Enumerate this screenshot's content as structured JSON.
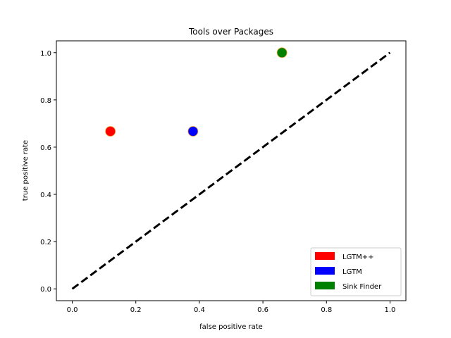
{
  "chart_data": {
    "type": "scatter",
    "title": "Tools over Packages",
    "xlabel": "false positive rate",
    "ylabel": "true positive rate",
    "xlim": [
      -0.05,
      1.05
    ],
    "ylim": [
      -0.05,
      1.05
    ],
    "xticks": [
      "0.0",
      "0.2",
      "0.4",
      "0.6",
      "0.8",
      "1.0"
    ],
    "yticks": [
      "0.0",
      "0.2",
      "0.4",
      "0.6",
      "0.8",
      "1.0"
    ],
    "grid": false,
    "legend_position": "lower-right",
    "series": [
      {
        "name": "LGTM++",
        "color": "#ff0000",
        "points": [
          {
            "x": 0.12,
            "y": 0.667
          }
        ]
      },
      {
        "name": "LGTM",
        "color": "#0000ff",
        "points": [
          {
            "x": 0.38,
            "y": 0.667
          }
        ]
      },
      {
        "name": "Sink Finder",
        "color": "#008000",
        "points": [
          {
            "x": 0.66,
            "y": 1.0
          }
        ]
      }
    ],
    "reference_line": {
      "x": [
        0,
        1
      ],
      "y": [
        0,
        1
      ],
      "style": "dashed",
      "color": "#000000"
    }
  }
}
